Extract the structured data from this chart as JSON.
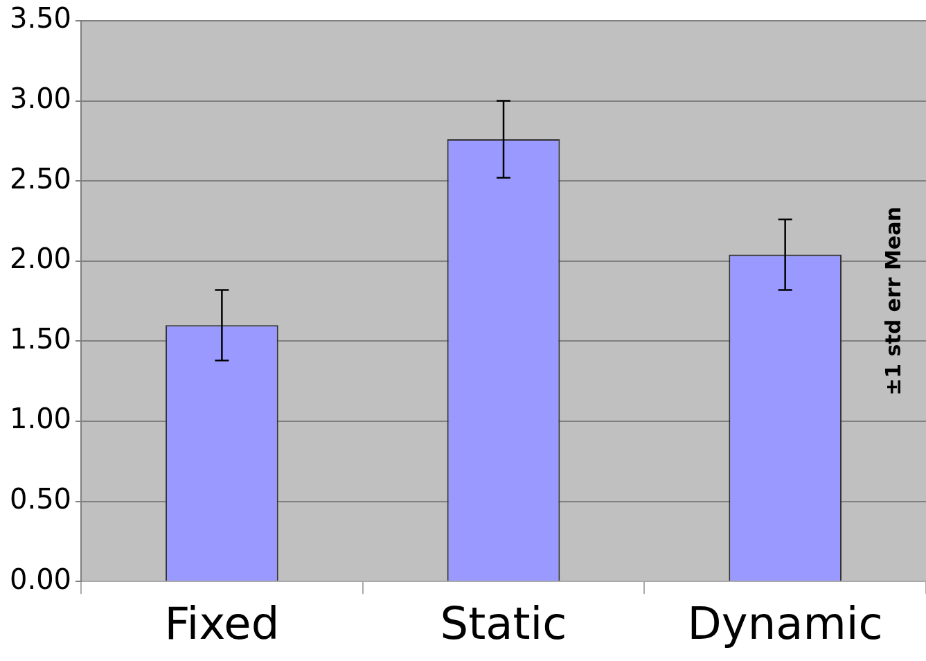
{
  "chart_data": {
    "type": "bar",
    "categories": [
      "Fixed",
      "Static",
      "Dynamic"
    ],
    "values": [
      1.6,
      2.76,
      2.04
    ],
    "errors": [
      0.22,
      0.24,
      0.22
    ],
    "color": "#9999ff",
    "ylim": [
      0,
      3.5
    ],
    "yticks": [
      {
        "value": 0,
        "label": "0.00"
      },
      {
        "value": 0.5,
        "label": "0.50"
      },
      {
        "value": 1,
        "label": "1.00"
      },
      {
        "value": 1.5,
        "label": "1.50"
      },
      {
        "value": 2,
        "label": "2.00"
      },
      {
        "value": 2.5,
        "label": "2.50"
      },
      {
        "value": 3,
        "label": "3.00"
      },
      {
        "value": 3.5,
        "label": "3.50"
      }
    ],
    "grid": "y",
    "annotations": [
      "±1 std err Mean"
    ]
  }
}
